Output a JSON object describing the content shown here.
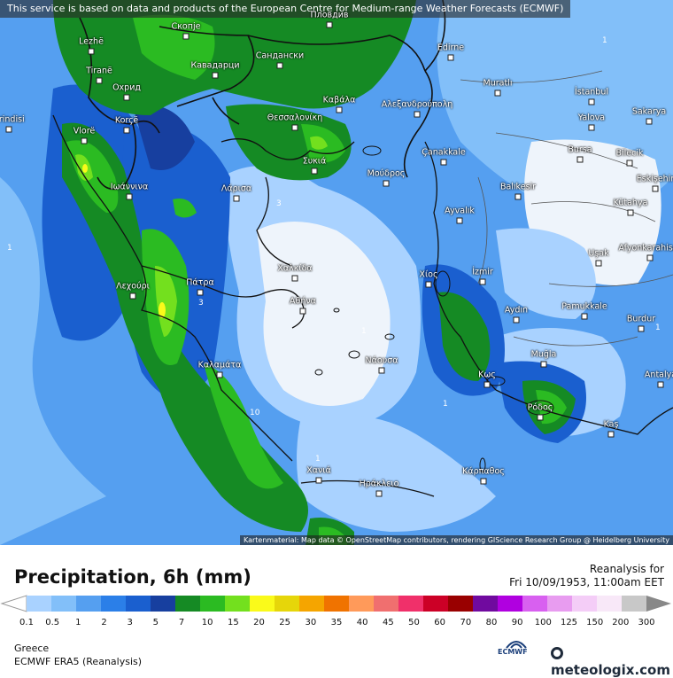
{
  "notice": "This service is based on data and products of the European Centre for Medium-range Weather Forecasts (ECMWF)",
  "credit": "Kartenmaterial: Map data © OpenStreetMap contributors, rendering GIScience Research Group @ Heidelberg University",
  "title": "Precipitation, 6h (mm)",
  "reanalysis_label": "Reanalysis for",
  "datetime": "Fri 10/09/1953, 11:00am EET",
  "region": "Greece",
  "model": "ECMWF ERA5 (Reanalysis)",
  "ecmwf_label": "ECMWF",
  "brand": "meteologix.com",
  "legend": {
    "ticks": [
      "0.1",
      "0.5",
      "1",
      "2",
      "3",
      "5",
      "7",
      "10",
      "15",
      "20",
      "25",
      "30",
      "35",
      "40",
      "45",
      "50",
      "60",
      "70",
      "80",
      "90",
      "100",
      "125",
      "150",
      "200",
      "300"
    ],
    "colors": [
      "#a9d2ff",
      "#82bff9",
      "#559ff0",
      "#2b7fe8",
      "#1a5fcf",
      "#173f9f",
      "#158a24",
      "#2bbb22",
      "#73e01e",
      "#fafa1a",
      "#e6d60a",
      "#f5a500",
      "#f07300",
      "#ff9a5a",
      "#f06f6f",
      "#f0306a",
      "#cc0026",
      "#990000",
      "#700a9f",
      "#b000e0",
      "#d860f0",
      "#e89cf0",
      "#f4cdf7",
      "#f8e8f8",
      "#c8c8c8"
    ]
  },
  "cities": [
    {
      "name": "Скопје"
    },
    {
      "name": "Кавадарци"
    },
    {
      "name": "Сандански"
    },
    {
      "name": "Пловдив"
    },
    {
      "name": "Lezhë"
    },
    {
      "name": "Tiranë"
    },
    {
      "name": "Охрид"
    },
    {
      "name": "Korçë"
    },
    {
      "name": "Vlorë"
    },
    {
      "name": "Θεσσαλονίκη"
    },
    {
      "name": "Καβάλα"
    },
    {
      "name": "Αλεξανδρούπολη"
    },
    {
      "name": "Edirne"
    },
    {
      "name": "Muratlı"
    },
    {
      "name": "İstanbul"
    },
    {
      "name": "Yalova"
    },
    {
      "name": "Sakarya"
    },
    {
      "name": "Bursa"
    },
    {
      "name": "Bilecik"
    },
    {
      "name": "Eskişehir"
    },
    {
      "name": "Kütahya"
    },
    {
      "name": "Çanakkale"
    },
    {
      "name": "Balıkesir"
    },
    {
      "name": "Μούδρος"
    },
    {
      "name": "Συκιά"
    },
    {
      "name": "Ιωάννινα"
    },
    {
      "name": "Λάρισα"
    },
    {
      "name": "Ayvalık"
    },
    {
      "name": "Uşak"
    },
    {
      "name": "Afyonkarahisar"
    },
    {
      "name": "Χαλκίδα"
    },
    {
      "name": "Αθήνα"
    },
    {
      "name": "Λεχούρι"
    },
    {
      "name": "Πάτρα"
    },
    {
      "name": "Χίος"
    },
    {
      "name": "İzmir"
    },
    {
      "name": "Aydın"
    },
    {
      "name": "Pamukkale"
    },
    {
      "name": "Burdur"
    },
    {
      "name": "Καλαμάτα"
    },
    {
      "name": "Νάουσα"
    },
    {
      "name": "Muğla"
    },
    {
      "name": "Κως"
    },
    {
      "name": "Antalya"
    },
    {
      "name": "Ρόδος"
    },
    {
      "name": "Kaş"
    },
    {
      "name": "Χανιά"
    },
    {
      "name": "Ηράκλειο"
    },
    {
      "name": "Κάρπαθος"
    },
    {
      "name": "Brindisi"
    }
  ],
  "contour_labels": [
    "1",
    "1",
    "1",
    "3",
    "3",
    "10",
    "1",
    "1",
    "1"
  ]
}
